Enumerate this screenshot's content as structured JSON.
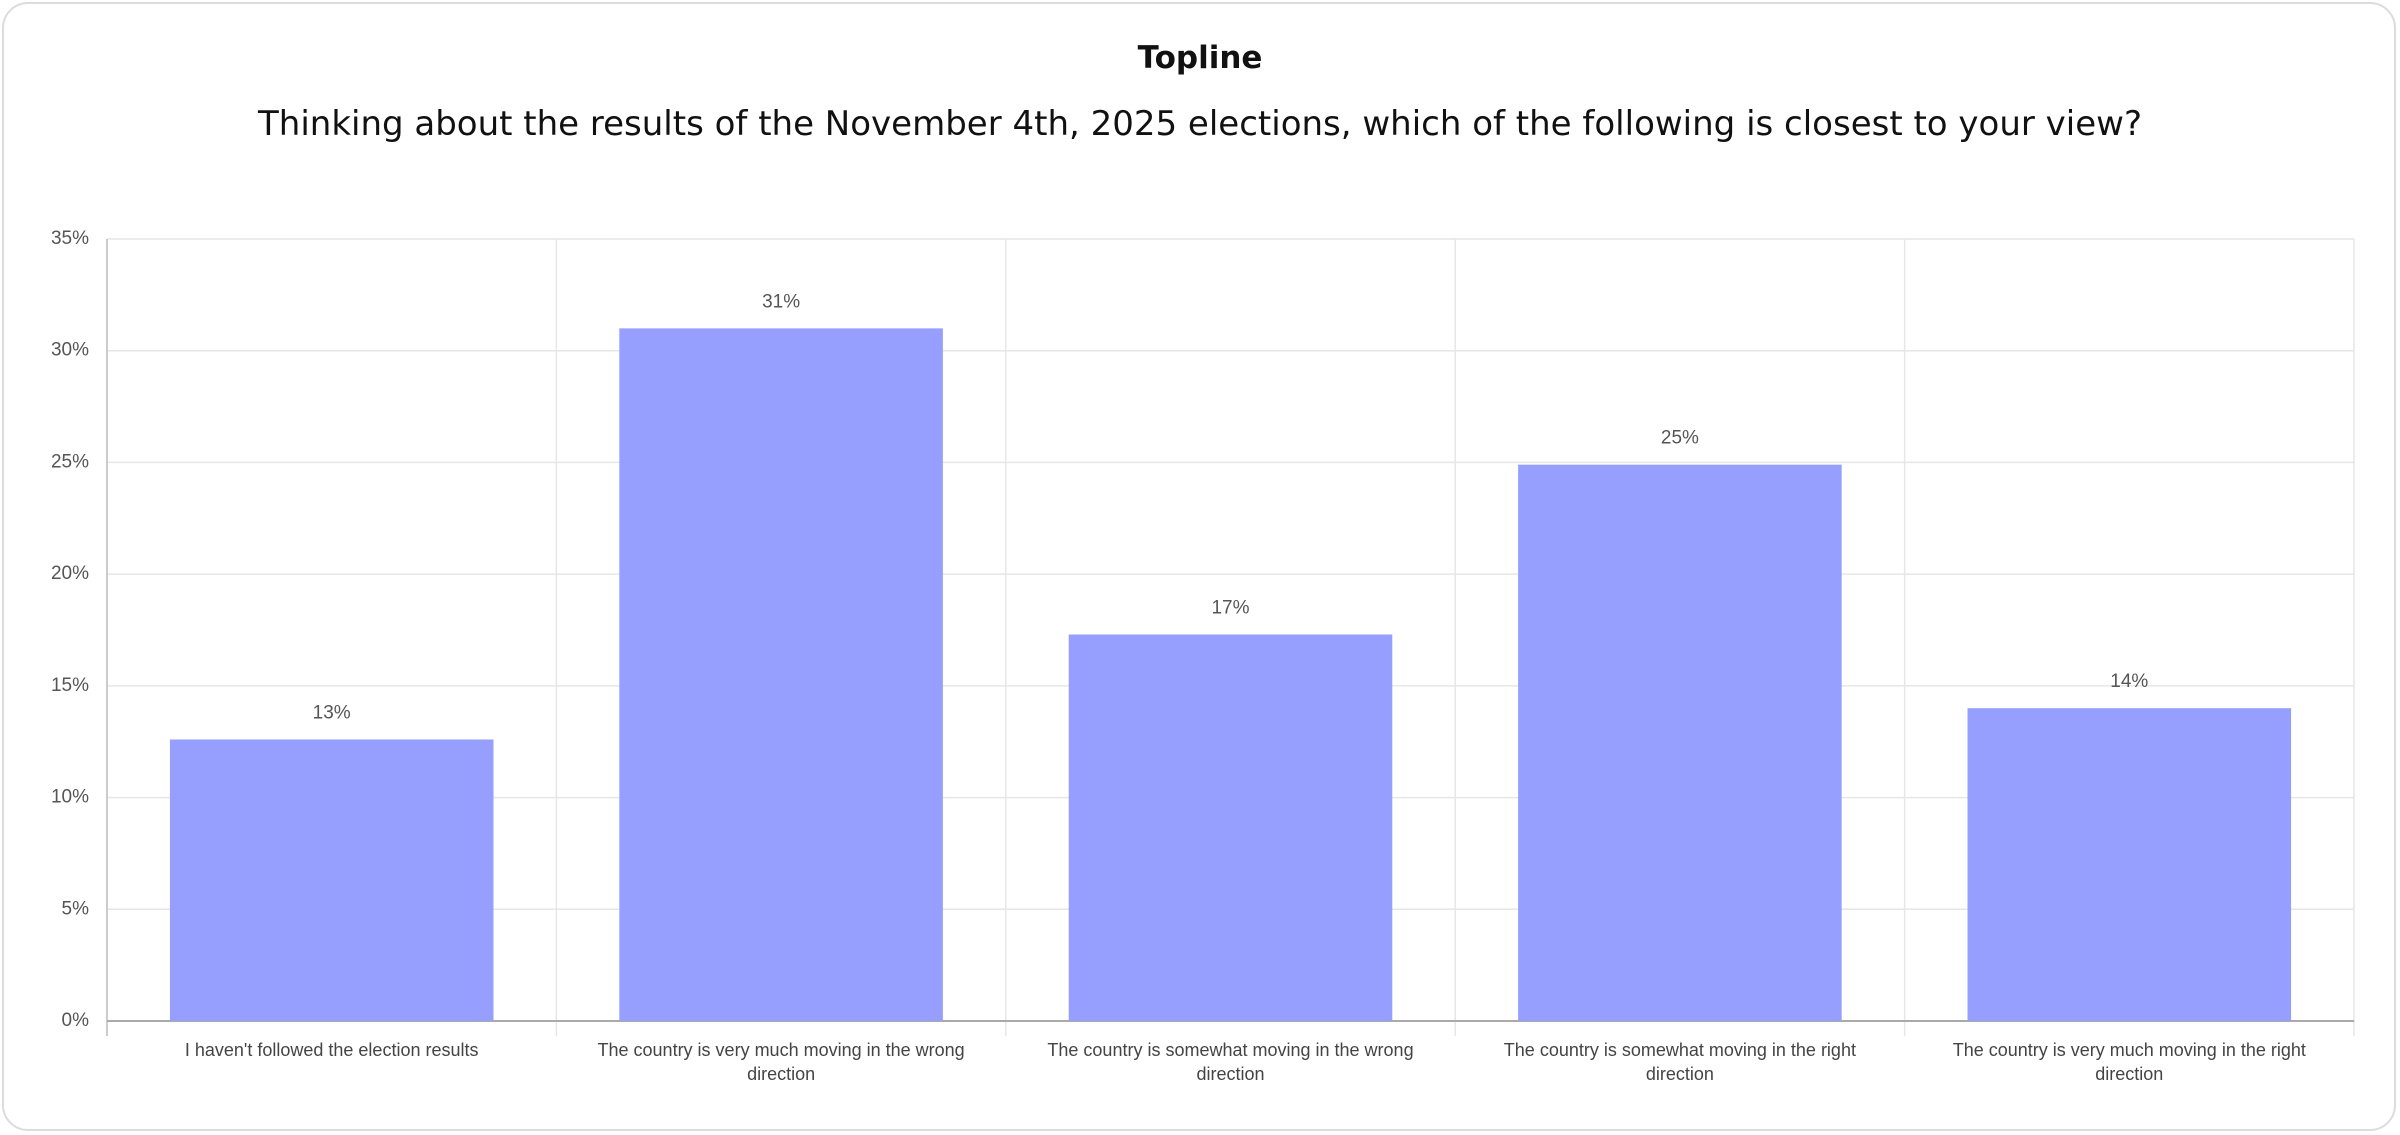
{
  "chart_data": {
    "type": "bar",
    "title": "Topline",
    "subtitle": "Thinking about the results of the November 4th, 2025 elections, which of the following is closest to your view?",
    "categories": [
      "I haven't followed the election results",
      "The country is very much moving in the wrong direction",
      "The country is somewhat moving in the wrong direction",
      "The country is somewhat moving in the right direction",
      "The country is very much moving in the right direction"
    ],
    "values": [
      12.6,
      31,
      17.3,
      24.9,
      14
    ],
    "value_labels": [
      "13%",
      "31%",
      "17%",
      "25%",
      "14%"
    ],
    "color": "#979ffe",
    "ylim": [
      0,
      35
    ],
    "yticks": [
      {
        "value": 0,
        "label": "0%"
      },
      {
        "value": 5,
        "label": "5%"
      },
      {
        "value": 10,
        "label": "10%"
      },
      {
        "value": 15,
        "label": "15%"
      },
      {
        "value": 20,
        "label": "20%"
      },
      {
        "value": 25,
        "label": "25%"
      },
      {
        "value": 30,
        "label": "30%"
      },
      {
        "value": 35,
        "label": "35%"
      }
    ],
    "grid": true
  }
}
